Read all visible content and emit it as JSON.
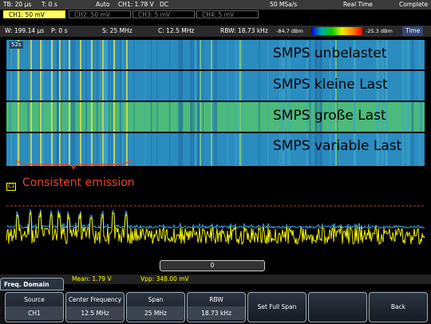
{
  "status_bar": {
    "timebase": "TB: 20 µs",
    "trigger_time": "T: 0 s",
    "mode": "Auto",
    "trigger": "CH1: 1.78 V",
    "coupling": "DC",
    "sample_rate": "50 MSa/s",
    "acquisition": "Real Time",
    "state": "Complete"
  },
  "channels": [
    "CH1: 50 mV",
    "CH2: 50 mV",
    "CH3: 5 mV",
    "CH4: 5 mV"
  ],
  "spectrum_bar": {
    "window": "W: 199.14 µs",
    "position": "P: 0 s",
    "span": "S: 25 MHz",
    "center": "C: 12.5 MHz",
    "rbw": "RBW: 18.73 kHz",
    "scale_min": "-84.7 dBm",
    "scale_max": "-25.3 dBm",
    "axis": "Time"
  },
  "spectrogram": {
    "time_label": "52s",
    "labels": [
      "SMPS unbelastet",
      "SMPS kleine Last",
      "SMPS große Last",
      "SMPS variable Last"
    ]
  },
  "annotation": "Consistent emission",
  "marker": "C1",
  "scroll_position": "0",
  "measurements": [
    "Mean: 1.79 V",
    "Vpp: 348.00 mV"
  ],
  "menu": {
    "title": "Freq. Domain",
    "softkeys": [
      {
        "label": "Source",
        "value": "CH1"
      },
      {
        "label": "Center Frequency",
        "value": "12.5 MHz"
      },
      {
        "label": "Span",
        "value": "25 MHz"
      },
      {
        "label": "RBW",
        "value": "18.73 kHz"
      },
      {
        "label": "Set Full Span"
      },
      {
        "label": "Back"
      }
    ]
  }
}
